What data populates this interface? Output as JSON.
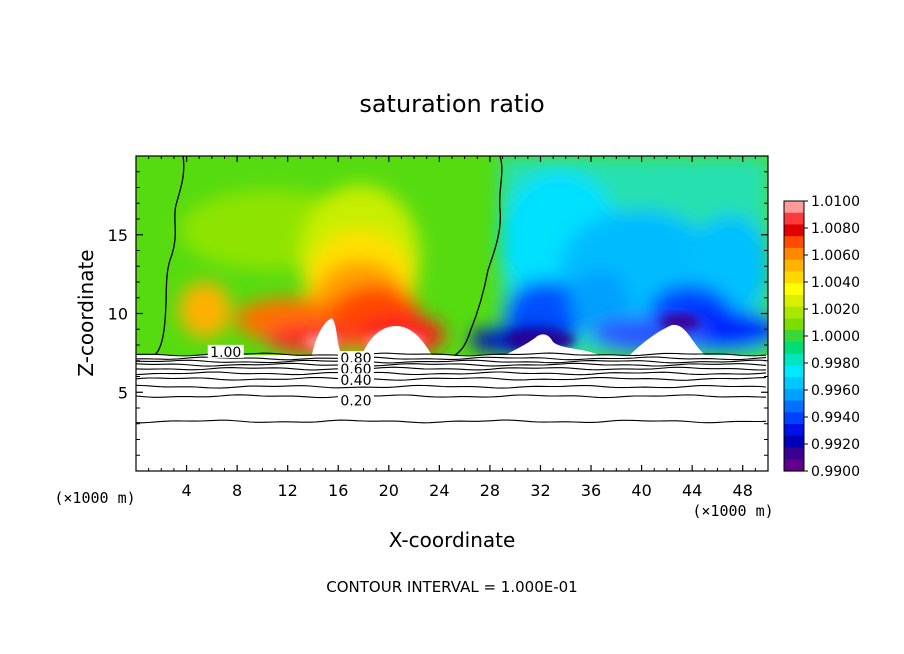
{
  "chart_data": {
    "type": "heatmap",
    "title": "saturation ratio",
    "xlabel": "X-coordinate",
    "ylabel": "Z-coordinate",
    "x_unit_left": "(×1000 m)",
    "x_unit_right": "(×1000 m)",
    "footer": "CONTOUR INTERVAL = 1.000E-01",
    "xlim": [
      0,
      50
    ],
    "ylim": [
      0,
      20
    ],
    "x_ticks": [
      4,
      8,
      12,
      16,
      20,
      24,
      28,
      32,
      36,
      40,
      44,
      48
    ],
    "x_tick_labels": [
      "4",
      "8",
      "12",
      "16",
      "20",
      "24",
      "28",
      "32",
      "36",
      "40",
      "44",
      "48"
    ],
    "y_ticks": [
      5,
      10,
      15
    ],
    "y_tick_labels": [
      "5",
      "10",
      "15"
    ],
    "colorbar": {
      "min": 0.99,
      "max": 1.01,
      "labels": [
        "1.0100",
        "1.0080",
        "1.0060",
        "1.0040",
        "1.0020",
        "1.0000",
        "0.9980",
        "0.9960",
        "0.9940",
        "0.9920",
        "0.9900"
      ],
      "colors": [
        "#ff9a9a",
        "#ff3a3a",
        "#e00000",
        "#ff4b00",
        "#ff8800",
        "#ffb400",
        "#ffd800",
        "#ffff00",
        "#d8f000",
        "#a8e800",
        "#7ddd00",
        "#38d838",
        "#00dd77",
        "#00e6c0",
        "#00e8ff",
        "#00c8ff",
        "#00a0ff",
        "#0070ff",
        "#0040ff",
        "#0010e8",
        "#0000b8",
        "#3a0090",
        "#60008c"
      ]
    },
    "contour_labels": [
      {
        "text": "1.00",
        "x": 7.1,
        "y": 7.5
      },
      {
        "text": "0.80",
        "x": 17.4,
        "y": 7.1
      },
      {
        "text": "0.60",
        "x": 17.4,
        "y": 6.4
      },
      {
        "text": "0.40",
        "x": 17.4,
        "y": 5.7
      },
      {
        "text": "0.20",
        "x": 17.4,
        "y": 4.4
      }
    ],
    "contour_levels_y": [
      7.4,
      7.15,
      6.95,
      6.75,
      6.5,
      6.2,
      5.85,
      5.35,
      4.75,
      3.15
    ]
  }
}
